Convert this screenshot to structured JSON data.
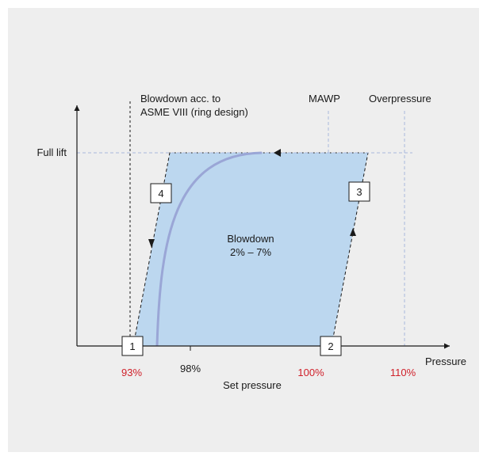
{
  "labels": {
    "blowdown_acc_line1": "Blowdown acc. to",
    "blowdown_acc_line2": "ASME VIII (ring design)",
    "mawp": "MAWP",
    "overpressure": "Overpressure",
    "full_lift": "Full lift",
    "pressure": "Pressure",
    "blowdown_line1": "Blowdown",
    "blowdown_line2": "2% – 7%",
    "set_pressure": "Set pressure"
  },
  "x_ticks": [
    {
      "label": "93%",
      "color": "#d0202a"
    },
    {
      "label": "98%",
      "color": "#1a1a1a"
    },
    {
      "label": "100%",
      "color": "#d0202a"
    },
    {
      "label": "110%",
      "color": "#d0202a"
    }
  ],
  "markers": [
    "1",
    "2",
    "3",
    "4"
  ],
  "colors": {
    "background": "#eeeeee",
    "area_fill": "#bcd7ef",
    "curve": "#9aa6d6",
    "guide_line": "#a8b8dc",
    "accent_red": "#d0202a",
    "axis": "#1a1a1a"
  }
}
